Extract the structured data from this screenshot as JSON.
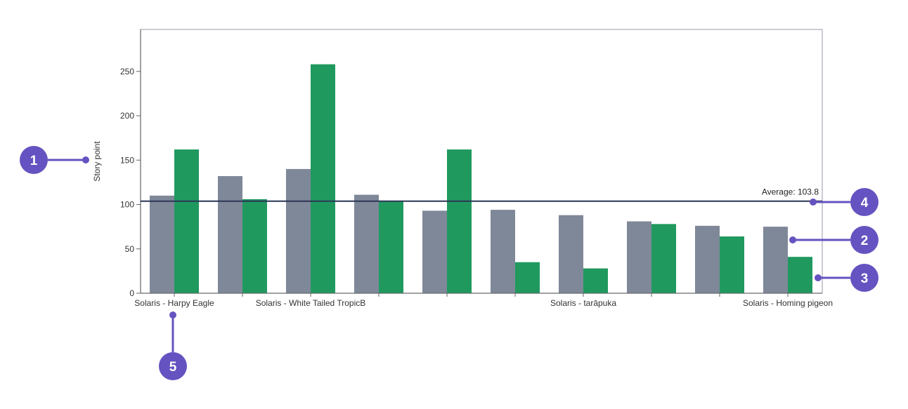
{
  "chart_data": {
    "type": "bar",
    "ylabel": "Story point",
    "xlabel": "",
    "ylim": [
      0,
      290
    ],
    "yticks": [
      0,
      50,
      100,
      150,
      200,
      250
    ],
    "grid": false,
    "legend": "none",
    "categories": [
      "Solaris - Harpy Eagle",
      "",
      "Solaris - White Tailed TropicB",
      "",
      "",
      "",
      "Solaris - tarāpuka",
      "",
      "",
      "Solaris - Homing pigeon"
    ],
    "series": [
      {
        "color": "#7f8898",
        "values": [
          110,
          132,
          140,
          111,
          93,
          94,
          88,
          81,
          76,
          75
        ]
      },
      {
        "color": "#20995f",
        "values": [
          162,
          106,
          258,
          104,
          162,
          35,
          28,
          78,
          64,
          41
        ]
      }
    ],
    "average": {
      "label": "Average: 103.8",
      "value": 103.8,
      "color": "#2b3656"
    }
  },
  "annotations": [
    {
      "label": "1",
      "target": "y-axis-label"
    },
    {
      "label": "2",
      "target": "series-1-bar"
    },
    {
      "label": "3",
      "target": "series-2-bar"
    },
    {
      "label": "4",
      "target": "average-line"
    },
    {
      "label": "5",
      "target": "category-label"
    }
  ],
  "colors": {
    "callout": "#6453c0",
    "frame": "#b9bcc4",
    "axis": "#666666"
  }
}
